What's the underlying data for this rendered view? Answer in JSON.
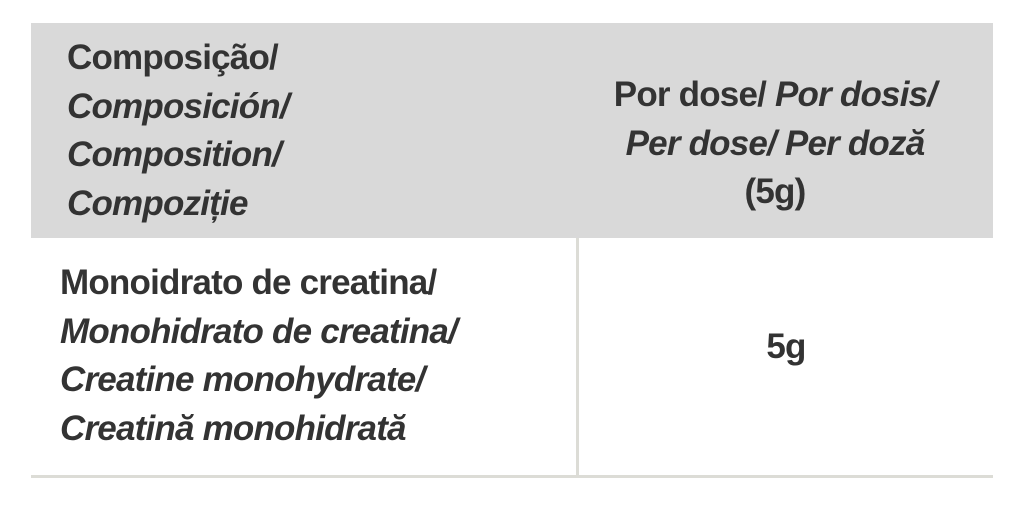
{
  "header": {
    "composition": [
      "Composição/",
      "Composición/",
      "Composition/",
      "Compoziție"
    ],
    "per_dose": {
      "line1_regular": "Por dose/",
      "line1_italic": " Por dosis/",
      "line2_italic": "Per dose/ Per doză",
      "line3": "(5g)"
    }
  },
  "rows": [
    {
      "ingredient": [
        "Monoidrato de creatina/",
        "Monohidrato de creatina/",
        "Creatine monohydrate/",
        "Creatină monohidrată"
      ],
      "amount": "5g"
    }
  ],
  "colors": {
    "header_bg": "#d9d9d9",
    "text": "#333333",
    "rule": "#dcdcd6"
  }
}
